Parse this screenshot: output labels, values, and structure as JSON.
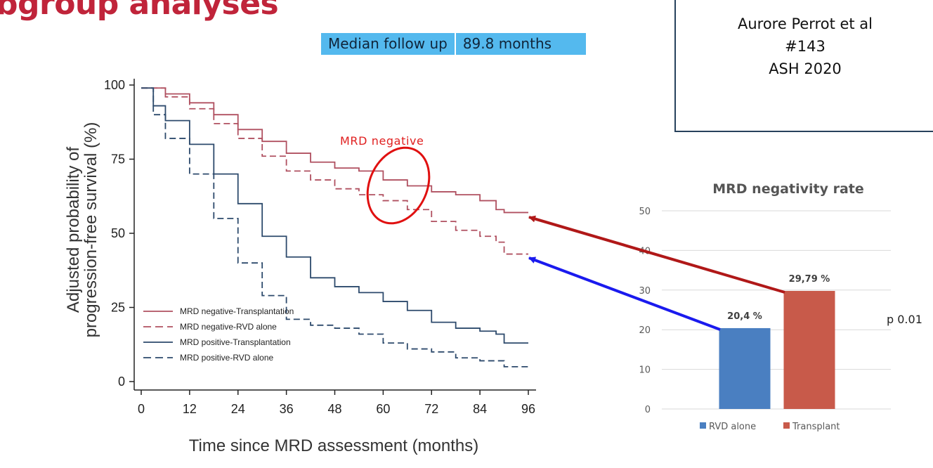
{
  "slide": {
    "title": "bgroup analyses",
    "follow_up_label": "Median follow up",
    "follow_up_value": "89.8 months",
    "reference": {
      "line1": "Aurore Perrot et al",
      "line2": "#143",
      "line3": "ASH 2020"
    },
    "annotation": "MRD negative",
    "p_value": "p 0.01"
  },
  "colors": {
    "title": "#c0243a",
    "mrd_negative": "#b05060",
    "mrd_positive": "#2d4a6c",
    "rvd_bar": "#4a7fc1",
    "transplant_bar": "#c85a4a",
    "arrow_red": "#b01818",
    "arrow_blue": "#1a1aee"
  },
  "chart_data": [
    {
      "type": "line",
      "title": "",
      "xlabel": "Time since MRD assessment (months)",
      "ylabel": "Adjusted probability of progression-free survival (%)",
      "ylabel_line1": "Adjusted probability of",
      "ylabel_line2": "progression-free survival (%)",
      "xlim": [
        0,
        96
      ],
      "ylim": [
        0,
        100
      ],
      "xticks": [
        "0",
        "12",
        "24",
        "36",
        "48",
        "60",
        "72",
        "84",
        "96"
      ],
      "yticks": [
        "0",
        "25",
        "50",
        "75",
        "100"
      ],
      "legend_position": "bottom-left",
      "series": [
        {
          "name": "MRD negative-Transplantation",
          "style": "solid",
          "color": "#b05060",
          "x": [
            0,
            6,
            12,
            18,
            24,
            30,
            36,
            42,
            48,
            54,
            60,
            66,
            72,
            78,
            84,
            88,
            90,
            96
          ],
          "y": [
            99,
            97,
            94,
            90,
            85,
            81,
            77,
            74,
            72,
            71,
            68,
            66,
            64,
            63,
            61,
            58,
            57,
            57
          ]
        },
        {
          "name": "MRD negative-RVD alone",
          "style": "dashed",
          "color": "#b05060",
          "x": [
            0,
            6,
            12,
            18,
            24,
            30,
            36,
            42,
            48,
            54,
            60,
            66,
            72,
            78,
            84,
            88,
            90,
            96
          ],
          "y": [
            99,
            96,
            92,
            87,
            82,
            76,
            71,
            68,
            65,
            63,
            61,
            58,
            54,
            51,
            49,
            47,
            43,
            43
          ]
        },
        {
          "name": "MRD positive-Transplantation",
          "style": "solid",
          "color": "#2d4a6c",
          "x": [
            0,
            3,
            6,
            12,
            18,
            24,
            30,
            36,
            42,
            48,
            54,
            60,
            66,
            72,
            78,
            84,
            88,
            90,
            96
          ],
          "y": [
            99,
            93,
            88,
            80,
            70,
            60,
            49,
            42,
            35,
            32,
            30,
            27,
            24,
            20,
            18,
            17,
            16,
            13,
            13
          ]
        },
        {
          "name": "MRD positive-RVD alone",
          "style": "dashed",
          "color": "#2d4a6c",
          "x": [
            0,
            3,
            6,
            12,
            18,
            24,
            30,
            36,
            42,
            48,
            54,
            60,
            66,
            72,
            78,
            84,
            90,
            96
          ],
          "y": [
            99,
            90,
            82,
            70,
            55,
            40,
            29,
            21,
            19,
            18,
            16,
            13,
            11,
            10,
            8,
            7,
            5,
            5
          ]
        }
      ]
    },
    {
      "type": "bar",
      "title": "MRD negativity rate",
      "categories": [
        "RVD alone",
        "Transplant"
      ],
      "values": [
        20.4,
        29.79
      ],
      "labels": [
        "20,4 %",
        "29,79 %"
      ],
      "ylim": [
        0,
        50
      ],
      "yticks": [
        "0",
        "10",
        "20",
        "30",
        "40",
        "50"
      ],
      "legend_position": "bottom",
      "grid": true
    }
  ]
}
